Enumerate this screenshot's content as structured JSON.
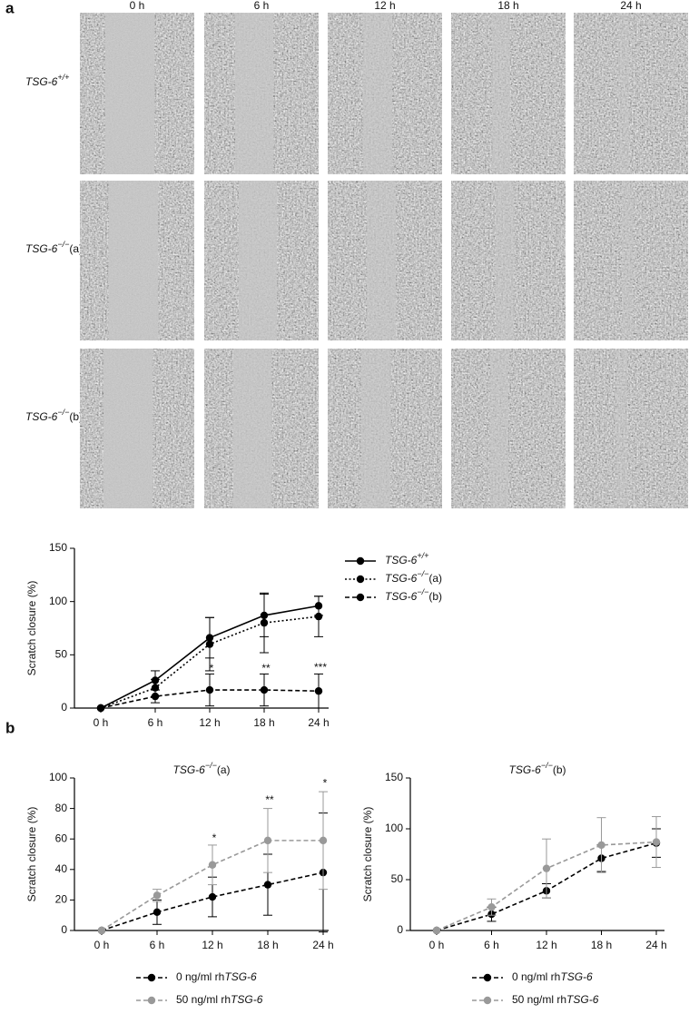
{
  "panel_labels": [
    "a",
    "b"
  ],
  "image_grid": {
    "columns": [
      "0 h",
      "6 h",
      "12 h",
      "18 h",
      "24 h"
    ],
    "rows": [
      "TSG-6+/+",
      "TSG-6−/−(a)",
      "TSG-6−/−(b)"
    ]
  },
  "chart_data": [
    {
      "type": "line",
      "ylabel": "Scratch closure (%)",
      "categories": [
        "0 h",
        "6 h",
        "12 h",
        "18 h",
        "24 h"
      ],
      "ylim": [
        0,
        150
      ],
      "yticks": [
        0,
        50,
        100,
        150
      ],
      "series": [
        {
          "name": "TSG-6+/+",
          "color": "#000000",
          "dash": "solid",
          "values": [
            0,
            26,
            66,
            87,
            96
          ],
          "errors": [
            0,
            9,
            19,
            20,
            9
          ]
        },
        {
          "name": "TSG-6−/−(a)",
          "color": "#000000",
          "dash": "dotted",
          "values": [
            0,
            19,
            60,
            80,
            86
          ],
          "errors": [
            0,
            8,
            25,
            28,
            19
          ]
        },
        {
          "name": "TSG-6−/−(b)",
          "color": "#000000",
          "dash": "dashed",
          "values": [
            0,
            11,
            17,
            17,
            16
          ],
          "errors": [
            0,
            6,
            15,
            15,
            16
          ]
        }
      ],
      "annotations": [
        {
          "text": "*",
          "x": "12 h",
          "y": 35
        },
        {
          "text": "**",
          "x": "18 h",
          "y": 35
        },
        {
          "text": "***",
          "x": "24 h",
          "y": 36
        }
      ]
    },
    {
      "type": "line",
      "title": "TSG-6−/−(a)",
      "ylabel": "Scratch closure (%)",
      "categories": [
        "0 h",
        "6 h",
        "12 h",
        "18 h",
        "24 h"
      ],
      "ylim": [
        0,
        100
      ],
      "yticks": [
        0,
        20,
        40,
        60,
        80,
        100
      ],
      "series": [
        {
          "name": "0 ng/ml rhTSG-6",
          "color": "#000000",
          "dash": "dashed",
          "values": [
            0,
            12,
            22,
            30,
            38
          ],
          "errors": [
            0,
            8,
            13,
            20,
            39
          ]
        },
        {
          "name": "50 ng/ml rhTSG-6",
          "color": "#999999",
          "dash": "dashed",
          "values": [
            0,
            23,
            43,
            59,
            59
          ],
          "errors": [
            0,
            4,
            13,
            21,
            32
          ]
        }
      ],
      "annotations": [
        {
          "text": "*",
          "x": "12 h",
          "y": 59
        },
        {
          "text": "**",
          "x": "18 h",
          "y": 84
        },
        {
          "text": "*",
          "x": "24 h",
          "y": 95
        }
      ]
    },
    {
      "type": "line",
      "title": "TSG-6−/−(b)",
      "ylabel": "Scratch closure (%)",
      "categories": [
        "0 h",
        "6 h",
        "12 h",
        "18 h",
        "24 h"
      ],
      "ylim": [
        0,
        150
      ],
      "yticks": [
        0,
        50,
        100,
        150
      ],
      "series": [
        {
          "name": "0 ng/ml rhTSG-6",
          "color": "#000000",
          "dash": "dashed",
          "values": [
            0,
            16,
            39,
            71,
            86
          ],
          "errors": [
            0,
            7,
            7,
            13,
            14
          ]
        },
        {
          "name": "50 ng/ml rhTSG-6",
          "color": "#999999",
          "dash": "dashed",
          "values": [
            0,
            23,
            61,
            84,
            87
          ],
          "errors": [
            0,
            8,
            29,
            27,
            25
          ]
        }
      ]
    }
  ]
}
